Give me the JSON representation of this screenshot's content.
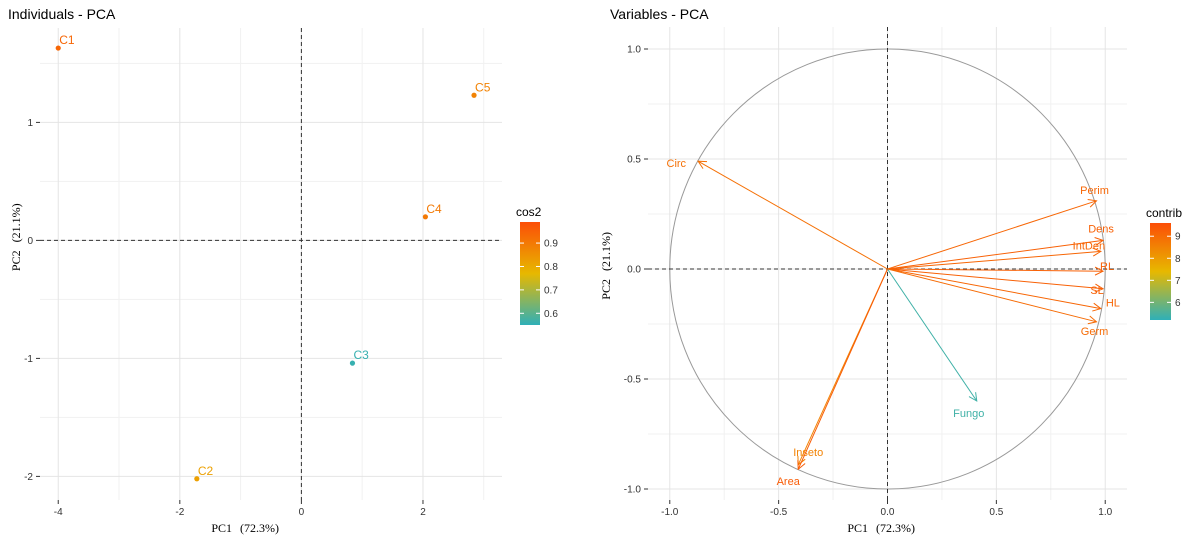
{
  "chart_data": [
    {
      "type": "scatter",
      "title": "Individuals - PCA",
      "xlabel": "PC1",
      "xlabel_pct": "(72.3%)",
      "ylabel": "PC2",
      "ylabel_pct": "(21.1%)",
      "xlim": [
        -4.3,
        3.3
      ],
      "ylim": [
        -2.2,
        1.8
      ],
      "xticks": [
        -4,
        -2,
        0,
        2
      ],
      "yticks": [
        -2,
        -1,
        0,
        1
      ],
      "grid": true,
      "color_legend": {
        "title": "cos2",
        "position": "right",
        "ticks": [
          0.6,
          0.7,
          0.8,
          0.9
        ],
        "tick_labels": [
          "0.6",
          "0.7",
          "0.8",
          "0.9"
        ],
        "range": [
          0.55,
          0.99
        ],
        "colors": [
          "#2fb0b8",
          "#e7b800",
          "#fc4e07"
        ]
      },
      "points": [
        {
          "label": "C1",
          "x": -4.0,
          "y": 1.63,
          "cos2": 0.94
        },
        {
          "label": "C2",
          "x": -1.72,
          "y": -2.02,
          "cos2": 0.82
        },
        {
          "label": "C3",
          "x": 0.84,
          "y": -1.04,
          "cos2": 0.56
        },
        {
          "label": "C4",
          "x": 2.04,
          "y": 0.2,
          "cos2": 0.9
        },
        {
          "label": "C5",
          "x": 2.84,
          "y": 1.23,
          "cos2": 0.88
        }
      ]
    },
    {
      "type": "scatter",
      "subtype": "pca-variables",
      "title": "Variables - PCA",
      "xlabel": "PC1",
      "xlabel_pct": "(72.3%)",
      "ylabel": "PC2",
      "ylabel_pct": "(21.1%)",
      "xlim": [
        -1.1,
        1.1
      ],
      "ylim": [
        -1.05,
        1.1
      ],
      "xticks": [
        -1.0,
        -0.5,
        0.0,
        0.5,
        1.0
      ],
      "xtick_labels": [
        "-1.0",
        "-0.5",
        "0.0",
        "0.5",
        "1.0"
      ],
      "yticks": [
        -1.0,
        -0.5,
        0.0,
        0.5,
        1.0
      ],
      "ytick_labels": [
        "-1.0",
        "-0.5",
        "0.0",
        "0.5",
        "1.0"
      ],
      "grid": true,
      "correlation_circle": true,
      "color_legend": {
        "title": "contrib",
        "position": "right",
        "ticks": [
          6,
          7,
          8,
          9
        ],
        "tick_labels": [
          "6",
          "7",
          "8",
          "9"
        ],
        "range": [
          5.2,
          9.6
        ],
        "colors": [
          "#2fb0b8",
          "#e7b800",
          "#fc4e07"
        ]
      },
      "variables": [
        {
          "label": "Circ",
          "x": -0.87,
          "y": 0.49,
          "contrib": 8.9
        },
        {
          "label": "Perim",
          "x": 0.96,
          "y": 0.31,
          "contrib": 9.1
        },
        {
          "label": "Dens",
          "x": 0.99,
          "y": 0.13,
          "contrib": 9.2
        },
        {
          "label": "IntDen",
          "x": 0.98,
          "y": 0.08,
          "contrib": 9.1
        },
        {
          "label": "RL",
          "x": 0.99,
          "y": -0.01,
          "contrib": 9.2
        },
        {
          "label": "SL",
          "x": 0.99,
          "y": -0.09,
          "contrib": 9.2
        },
        {
          "label": "HL",
          "x": 0.98,
          "y": -0.18,
          "contrib": 9.1
        },
        {
          "label": "Germ",
          "x": 0.96,
          "y": -0.24,
          "contrib": 9.0
        },
        {
          "label": "Fungo",
          "x": 0.41,
          "y": -0.6,
          "contrib": 5.4
        },
        {
          "label": "Inseto",
          "x": -0.41,
          "y": -0.89,
          "contrib": 8.5
        },
        {
          "label": "Area",
          "x": -0.41,
          "y": -0.91,
          "contrib": 9.3
        }
      ]
    }
  ]
}
